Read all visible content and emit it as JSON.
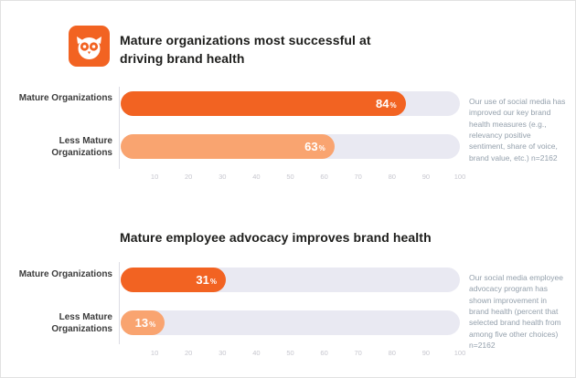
{
  "logo": {
    "name": "hootsuite-owl"
  },
  "chart_data": [
    {
      "type": "bar",
      "orientation": "horizontal",
      "title": "Mature organizations most successful at driving brand health",
      "categories": [
        "Mature Organizations",
        "Less Mature Organizations"
      ],
      "values": [
        84,
        63
      ],
      "unit": "%",
      "colors": [
        "#f26322",
        "#f9a470"
      ],
      "track_color": "#e9e9f2",
      "xlim": [
        0,
        100
      ],
      "ticks": [
        10,
        20,
        30,
        40,
        50,
        60,
        70,
        80,
        90,
        100
      ],
      "grid": false,
      "legend": "none",
      "annotation": "Our use of social media has improved our key brand health measures (e.g., relevancy positive sentiment, share of voice, brand value, etc.) n=2162"
    },
    {
      "type": "bar",
      "orientation": "horizontal",
      "title": "Mature employee advocacy improves brand health",
      "categories": [
        "Mature Organizations",
        "Less Mature Organizations"
      ],
      "values": [
        31,
        13
      ],
      "unit": "%",
      "colors": [
        "#f26322",
        "#f9a470"
      ],
      "track_color": "#e9e9f2",
      "xlim": [
        0,
        100
      ],
      "ticks": [
        10,
        20,
        30,
        40,
        50,
        60,
        70,
        80,
        90,
        100
      ],
      "grid": false,
      "legend": "none",
      "annotation": "Our social media employee advocacy program has shown improvement in brand health (percent that selected brand health from among five other choices) n=2162"
    }
  ]
}
